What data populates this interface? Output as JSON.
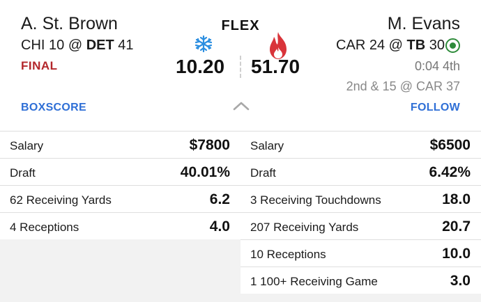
{
  "matchup": {
    "position": "FLEX",
    "left": {
      "player": "A. St. Brown",
      "team1": "CHI",
      "score1": "10",
      "at": "@",
      "team2": "DET",
      "score2": "41",
      "status": "FINAL",
      "fantasy_points": "10.20",
      "indicator": "cold",
      "link": "BOXSCORE"
    },
    "right": {
      "player": "M. Evans",
      "team1": "CAR",
      "score1": "24",
      "at": "@",
      "team2": "TB",
      "score2": "30",
      "clock": "0:04 4th",
      "down_distance": "2nd & 15 @ CAR 37",
      "fantasy_points": "51.70",
      "indicator": "hot",
      "link": "FOLLOW"
    }
  },
  "colors": {
    "final_red": "#b3262b",
    "link_blue": "#2f6fd6",
    "cold_blue": "#2b8ee0",
    "hot_red": "#d9343a",
    "live_green": "#2e8b3a"
  },
  "icons": [
    "snowflake-icon",
    "flame-icon",
    "live-status-icon",
    "chevron-up-icon"
  ],
  "stats": {
    "left": [
      {
        "label": "Salary",
        "value": "$7800"
      },
      {
        "label": "Draft",
        "value": "40.01%"
      },
      {
        "label": "62 Receiving Yards",
        "value": "6.2"
      },
      {
        "label": "4 Receptions",
        "value": "4.0"
      }
    ],
    "right": [
      {
        "label": "Salary",
        "value": "$6500"
      },
      {
        "label": "Draft",
        "value": "6.42%"
      },
      {
        "label": "3 Receiving Touchdowns",
        "value": "18.0"
      },
      {
        "label": "207 Receiving Yards",
        "value": "20.7"
      },
      {
        "label": "10 Receptions",
        "value": "10.0"
      },
      {
        "label": "1 100+ Receiving Game",
        "value": "3.0"
      }
    ]
  }
}
